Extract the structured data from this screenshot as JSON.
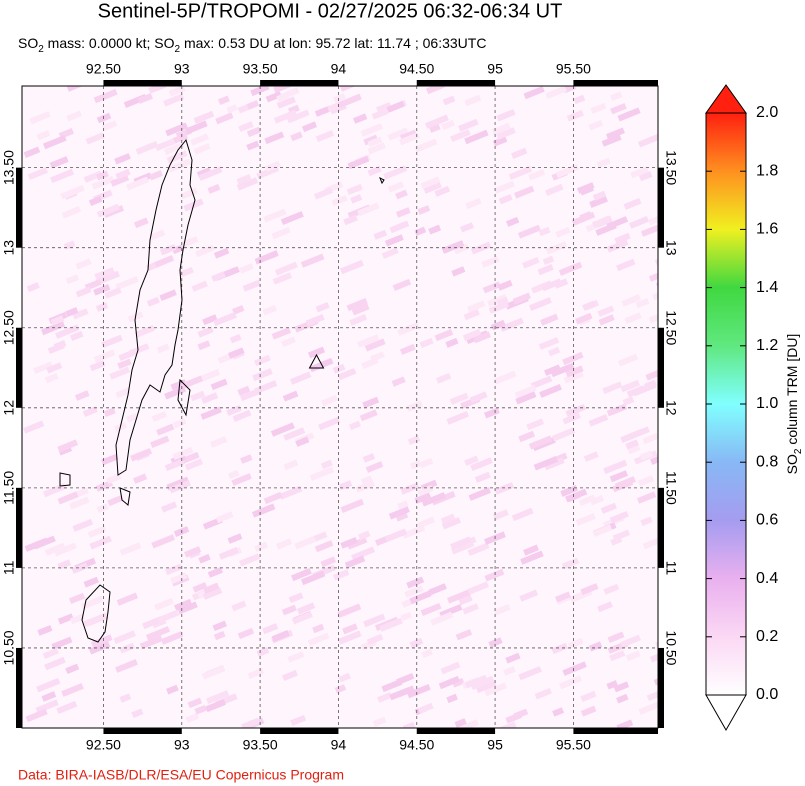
{
  "chart_data": {
    "type": "map",
    "title": "Sentinel-5P/TROPOMI - 02/27/2025 06:32-06:34 UT",
    "subtitle": [
      "SO",
      "2",
      " mass: 0.0000 kt; SO",
      "2",
      " max: 0.53 DU at lon: 95.72 lat: 11.74 ; 06:33UTC"
    ],
    "xlim": [
      91.98,
      96.04
    ],
    "ylim": [
      10.0,
      14.01
    ],
    "xticks": [
      {
        "value": 92.5,
        "label": "92.50"
      },
      93,
      {
        "value": 93.5,
        "label": "93.50"
      },
      94,
      {
        "value": 94.5,
        "label": "94.50"
      },
      95,
      {
        "value": 95.5,
        "label": "95.50"
      }
    ],
    "yticks": [
      {
        "value": 10.5,
        "label": "10.50"
      },
      11,
      {
        "value": 11.5,
        "label": "11.50"
      },
      12,
      {
        "value": 12.5,
        "label": "12.50"
      },
      13,
      {
        "value": 13.5,
        "label": "13.50"
      }
    ],
    "grid": true,
    "volcano": {
      "lon": 93.86,
      "lat": 12.28
    },
    "colorbar": {
      "label": [
        "SO",
        "2",
        " column TRM [DU]"
      ],
      "lim": [
        0,
        2
      ],
      "ticks": [
        {
          "value": 0,
          "label": "0.0"
        },
        {
          "value": 0.2,
          "label": "0.2"
        },
        {
          "value": 0.4,
          "label": "0.4"
        },
        {
          "value": 0.6,
          "label": "0.6"
        },
        {
          "value": 0.8,
          "label": "0.8"
        },
        {
          "value": 1,
          "label": "1.0"
        },
        {
          "value": 1.2,
          "label": "1.2"
        },
        {
          "value": 1.4,
          "label": "1.4"
        },
        {
          "value": 1.6,
          "label": "1.6"
        },
        {
          "value": 1.8,
          "label": "1.8"
        },
        {
          "value": 2,
          "label": "2.0"
        }
      ]
    },
    "footer": "Data: BIRA-IASB/DLR/ESA/EU Copernicus Program"
  }
}
